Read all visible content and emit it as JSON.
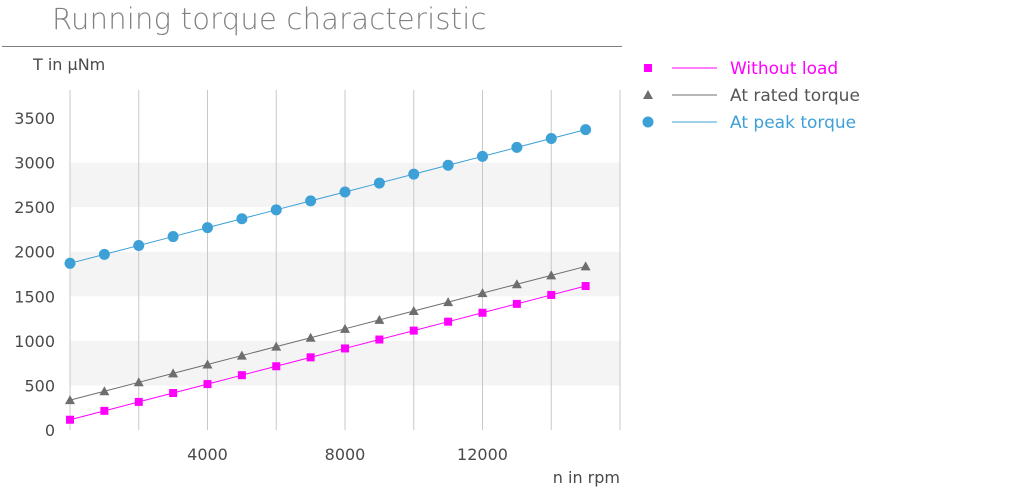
{
  "title": "Running torque characteristic",
  "chart_data": {
    "type": "line",
    "title": "Running torque characteristic",
    "xlabel": "n in rpm",
    "ylabel": "T in µNm",
    "xlim": [
      0,
      16000
    ],
    "ylim": [
      0,
      3500
    ],
    "x_ticks": [
      4000,
      8000,
      12000
    ],
    "y_ticks": [
      0,
      500,
      1000,
      1500,
      2000,
      2500,
      3000,
      3500
    ],
    "grid": "vertical lines, alternating horizontal bands",
    "legend_position": "right",
    "x": [
      0,
      1000,
      2000,
      3000,
      4000,
      5000,
      6000,
      7000,
      8000,
      9000,
      10000,
      11000,
      12000,
      13000,
      14000,
      15000
    ],
    "series": [
      {
        "name": "Without load",
        "color": "#ff00ff",
        "marker": "square",
        "values": [
          115,
          215,
          315,
          415,
          515,
          615,
          715,
          815,
          915,
          1015,
          1115,
          1215,
          1315,
          1415,
          1515,
          1615
        ]
      },
      {
        "name": "At rated torque",
        "color": "#6e6e6e",
        "marker": "triangle",
        "values": [
          335,
          435,
          535,
          635,
          735,
          835,
          935,
          1035,
          1135,
          1235,
          1335,
          1435,
          1535,
          1635,
          1735,
          1835
        ]
      },
      {
        "name": "At peak torque",
        "color": "#3da0d6",
        "marker": "circle",
        "values": [
          1870,
          1970,
          2070,
          2170,
          2270,
          2370,
          2470,
          2570,
          2670,
          2770,
          2870,
          2970,
          3070,
          3170,
          3270,
          3370
        ]
      }
    ]
  }
}
